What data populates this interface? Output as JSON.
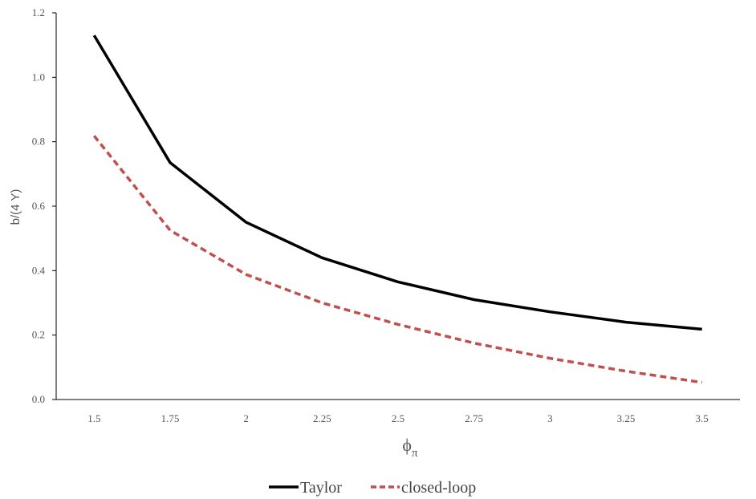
{
  "chart_data": {
    "type": "line",
    "title": "",
    "ylabel": "b/(4 Y)",
    "xlabel": {
      "base": "ϕ",
      "subscript": "π"
    },
    "categories": [
      "1.5",
      "1.75",
      "2",
      "2.25",
      "2.5",
      "2.75",
      "3",
      "3.25",
      "3.5"
    ],
    "ylim": [
      0,
      1.2
    ],
    "yticks": [
      "0.0",
      "0.2",
      "0.4",
      "0.6",
      "0.8",
      "1.0",
      "1.2"
    ],
    "grid": false,
    "legend_position": "bottom",
    "series": [
      {
        "name": "Taylor",
        "color": "#000000",
        "style": "solid",
        "values": [
          1.13,
          0.735,
          0.55,
          0.44,
          0.365,
          0.31,
          0.272,
          0.24,
          0.218
        ]
      },
      {
        "name": "closed-loop",
        "color": "#c0504d",
        "style": "dashed",
        "values": [
          0.818,
          0.525,
          0.388,
          0.3,
          0.233,
          0.175,
          0.128,
          0.088,
          0.053
        ]
      }
    ]
  }
}
